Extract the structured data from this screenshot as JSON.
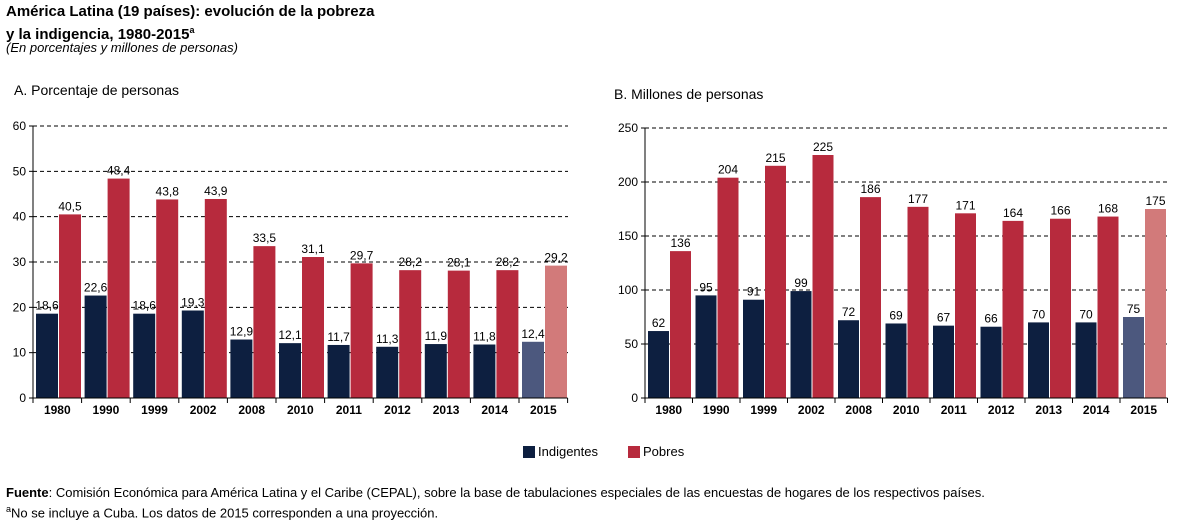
{
  "title_line1": "América Latina (19 países): evolución de la pobreza",
  "title_line2": "y la indigencia, 1980-2015",
  "title_sup": "a",
  "subtitle": "(En porcentajes y millones de personas)",
  "legend": {
    "indigentes": "Indigentes",
    "pobres": "Pobres"
  },
  "colors": {
    "indigentes": "#0d1f40",
    "pobres": "#b72a3d",
    "indigentes_proj": "#4c587e",
    "pobres_proj": "#d27a7a"
  },
  "source": {
    "label": "Fuente",
    "text": ": Comisión Económica para América Latina y el Caribe (CEPAL), sobre la base de tabulaciones especiales de las encuestas de hogares de los respectivos países.",
    "note_sup": "a",
    "note": "No se incluye a Cuba. Los datos de 2015 corresponden a una proyección."
  },
  "chart_data": [
    {
      "type": "bar",
      "title": "A. Porcentaje de personas",
      "categories": [
        "1980",
        "1990",
        "1999",
        "2002",
        "2008",
        "2010",
        "2011",
        "2012",
        "2013",
        "2014",
        "2015"
      ],
      "series": [
        {
          "name": "Indigentes",
          "values": [
            18.6,
            22.6,
            18.6,
            19.3,
            12.9,
            12.1,
            11.7,
            11.3,
            11.9,
            11.8,
            12.4
          ],
          "labels": [
            "18,6",
            "22,6",
            "18,6",
            "19,3",
            "12,9",
            "12,1",
            "11,7",
            "11,3",
            "11,9",
            "11,8",
            "12,4"
          ]
        },
        {
          "name": "Pobres",
          "values": [
            40.5,
            48.4,
            43.8,
            43.9,
            33.5,
            31.1,
            29.7,
            28.2,
            28.1,
            28.2,
            29.2
          ],
          "labels": [
            "40,5",
            "48,4",
            "43,8",
            "43,9",
            "33,5",
            "31,1",
            "29,7",
            "28,2",
            "28,1",
            "28,2",
            "29,2"
          ]
        }
      ],
      "ylim": [
        0,
        60
      ],
      "yticks": [
        0,
        10,
        20,
        30,
        40,
        50,
        60
      ],
      "grid": true,
      "projected_category": "2015"
    },
    {
      "type": "bar",
      "title": "B. Millones de personas",
      "categories": [
        "1980",
        "1990",
        "1999",
        "2002",
        "2008",
        "2010",
        "2011",
        "2012",
        "2013",
        "2014",
        "2015"
      ],
      "series": [
        {
          "name": "Indigentes",
          "values": [
            62,
            95,
            91,
            99,
            72,
            69,
            67,
            66,
            70,
            70,
            75
          ],
          "labels": [
            "62",
            "95",
            "91",
            "99",
            "72",
            "69",
            "67",
            "66",
            "70",
            "70",
            "75"
          ]
        },
        {
          "name": "Pobres",
          "values": [
            136,
            204,
            215,
            225,
            186,
            177,
            171,
            164,
            166,
            168,
            175
          ],
          "labels": [
            "136",
            "204",
            "215",
            "225",
            "186",
            "177",
            "171",
            "164",
            "166",
            "168",
            "175"
          ]
        }
      ],
      "ylim": [
        0,
        250
      ],
      "yticks": [
        0,
        50,
        100,
        150,
        200,
        250
      ],
      "grid": true,
      "projected_category": "2015"
    }
  ]
}
